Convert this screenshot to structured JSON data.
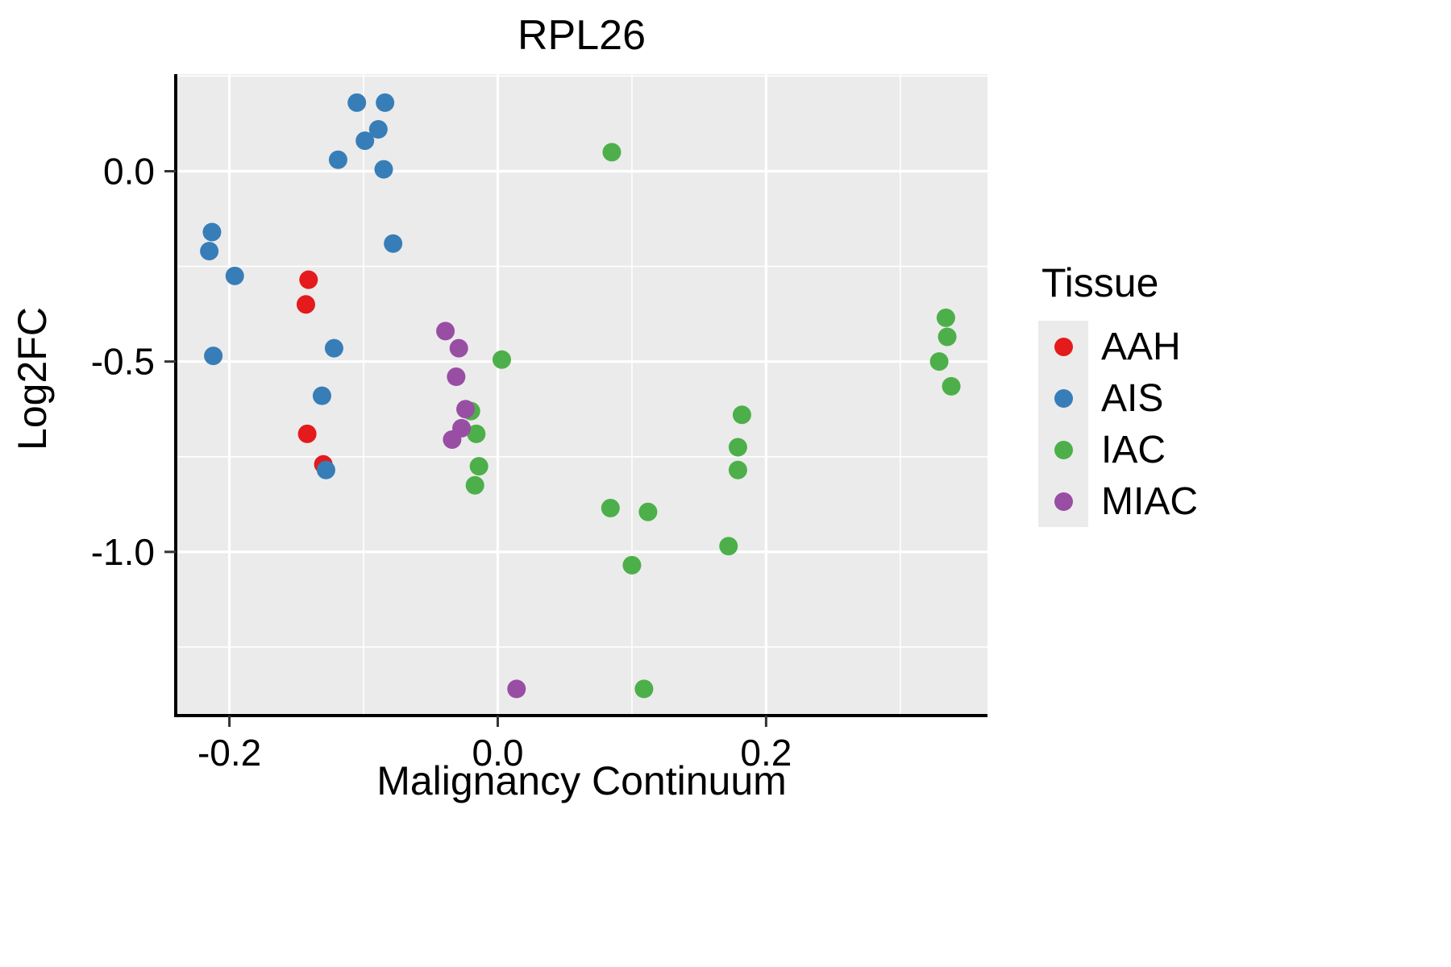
{
  "chart_data": {
    "type": "scatter",
    "title": "RPL26",
    "xlabel": "Malignancy Continuum",
    "ylabel": "Log2FC",
    "xlim": [
      -0.24,
      0.365
    ],
    "ylim": [
      -1.43,
      0.255
    ],
    "grid": true,
    "panel_color": "#EBEBEB",
    "x_ticks": [
      -0.2,
      0.0,
      0.2
    ],
    "x_tick_labels": [
      "-0.2",
      "0.0",
      "0.2"
    ],
    "x_minor_ticks": [
      -0.1,
      0.1,
      0.3
    ],
    "y_ticks": [
      0.0,
      -0.5,
      -1.0
    ],
    "y_tick_labels": [
      "0.0",
      "-0.5",
      "-1.0"
    ],
    "y_minor_ticks": [
      0.25,
      -0.25,
      -0.75,
      -1.25
    ],
    "legend": {
      "title": "Tissue",
      "position": "right"
    },
    "series": [
      {
        "name": "AAH",
        "color": "#E41A1C",
        "points": [
          [
            -0.141,
            -0.285
          ],
          [
            -0.143,
            -0.35
          ],
          [
            -0.142,
            -0.69
          ],
          [
            -0.13,
            -0.77
          ]
        ]
      },
      {
        "name": "AIS",
        "color": "#377EB8",
        "points": [
          [
            -0.105,
            0.18
          ],
          [
            -0.084,
            0.18
          ],
          [
            -0.089,
            0.11
          ],
          [
            -0.099,
            0.08
          ],
          [
            -0.119,
            0.03
          ],
          [
            -0.085,
            0.005
          ],
          [
            -0.213,
            -0.16
          ],
          [
            -0.215,
            -0.21
          ],
          [
            -0.196,
            -0.275
          ],
          [
            -0.078,
            -0.19
          ],
          [
            -0.212,
            -0.485
          ],
          [
            -0.122,
            -0.465
          ],
          [
            -0.131,
            -0.59
          ],
          [
            -0.128,
            -0.785
          ]
        ]
      },
      {
        "name": "IAC",
        "color": "#4DAF4A",
        "points": [
          [
            0.085,
            0.05
          ],
          [
            0.334,
            -0.385
          ],
          [
            0.335,
            -0.435
          ],
          [
            0.329,
            -0.5
          ],
          [
            0.338,
            -0.565
          ],
          [
            0.003,
            -0.495
          ],
          [
            -0.02,
            -0.63
          ],
          [
            -0.016,
            -0.69
          ],
          [
            -0.014,
            -0.775
          ],
          [
            -0.017,
            -0.825
          ],
          [
            0.182,
            -0.64
          ],
          [
            0.179,
            -0.725
          ],
          [
            0.179,
            -0.785
          ],
          [
            0.084,
            -0.885
          ],
          [
            0.112,
            -0.895
          ],
          [
            0.172,
            -0.985
          ],
          [
            0.1,
            -1.035
          ],
          [
            0.109,
            -1.36
          ]
        ]
      },
      {
        "name": "MIAC",
        "color": "#984EA3",
        "points": [
          [
            -0.039,
            -0.42
          ],
          [
            -0.029,
            -0.465
          ],
          [
            -0.031,
            -0.54
          ],
          [
            -0.024,
            -0.625
          ],
          [
            -0.027,
            -0.675
          ],
          [
            -0.034,
            -0.705
          ],
          [
            0.014,
            -1.36
          ]
        ]
      }
    ]
  }
}
